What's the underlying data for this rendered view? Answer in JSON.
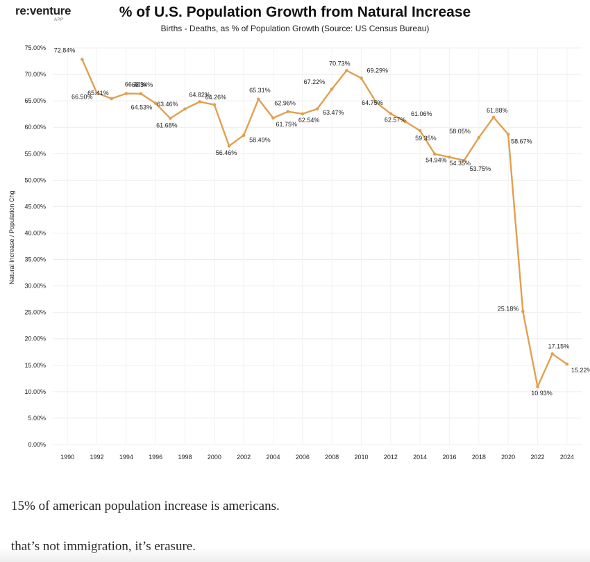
{
  "logo": {
    "main": "re:venture",
    "sub": "APP"
  },
  "chart_data": {
    "type": "line",
    "title": "% of U.S. Population Growth from Natural Increase",
    "subtitle": "Births - Deaths, as % of Population Growth (Source: US Census Bureau)",
    "ylabel": "Natural Increase / Population Chg",
    "xlabel": "",
    "xlim": [
      1989,
      2025
    ],
    "ylim": [
      0,
      75
    ],
    "grid": true,
    "color": "#E0A04F",
    "x_ticks": [
      "1990",
      "1992",
      "1994",
      "1996",
      "1998",
      "2000",
      "2002",
      "2004",
      "2006",
      "2008",
      "2010",
      "2012",
      "2014",
      "2016",
      "2018",
      "2020",
      "2022",
      "2024"
    ],
    "y_ticks": [
      "0.00%",
      "5.00%",
      "10.00%",
      "15.00%",
      "20.00%",
      "25.00%",
      "30.00%",
      "35.00%",
      "40.00%",
      "45.00%",
      "50.00%",
      "55.00%",
      "60.00%",
      "65.00%",
      "70.00%",
      "75.00%"
    ],
    "x": [
      1991,
      1992,
      1993,
      1994,
      1995,
      1996,
      1997,
      1998,
      1999,
      2000,
      2001,
      2002,
      2003,
      2004,
      2005,
      2006,
      2007,
      2008,
      2009,
      2010,
      2011,
      2012,
      2013,
      2014,
      2015,
      2016,
      2017,
      2018,
      2019,
      2020,
      2021,
      2022,
      2023,
      2024
    ],
    "values": [
      72.84,
      66.5,
      65.41,
      66.38,
      66.34,
      64.53,
      61.68,
      63.46,
      64.82,
      64.26,
      56.46,
      58.49,
      65.31,
      61.75,
      62.96,
      62.54,
      63.47,
      67.22,
      70.73,
      69.29,
      64.75,
      62.57,
      61.06,
      59.35,
      54.94,
      54.35,
      53.75,
      58.05,
      61.88,
      58.67,
      25.18,
      10.93,
      17.15,
      15.22
    ],
    "labels": [
      "72.84%",
      "66.50%",
      "65.41%",
      "66.38%",
      "66.34%",
      "64.53%",
      "61.68%",
      "63.46%",
      "64.82%",
      "64.26%",
      "56.46%",
      "58.49%",
      "65.31%",
      "61.75%",
      "62.96%",
      "62.54%",
      "63.47%",
      "67.22%",
      "70.73%",
      "69.29%",
      "64.75%",
      "62.57%",
      "61.06%",
      "59.35%",
      "54.94%",
      "54.35%",
      "53.75%",
      "58.05%",
      "61.88%",
      "58.67%",
      "25.18%",
      "10.93%",
      "17.15%",
      "15.22%"
    ]
  },
  "captions": [
    "15% of american population increase is americans.",
    "that’s not immigration, it’s erasure."
  ]
}
